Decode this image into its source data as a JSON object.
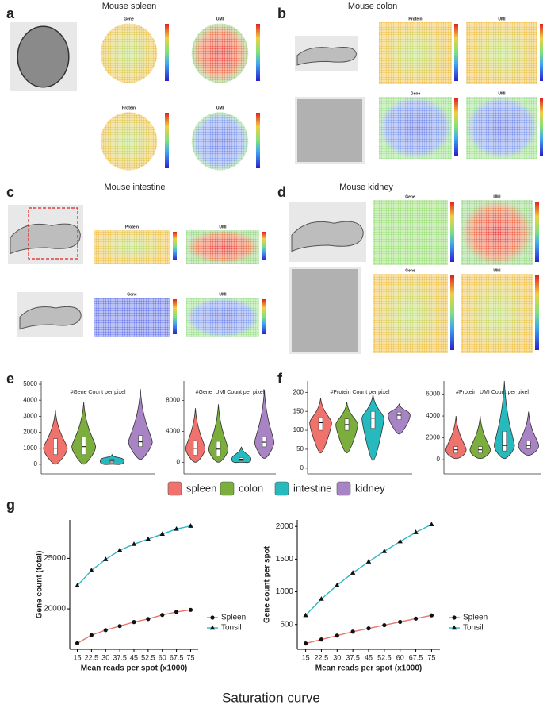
{
  "panels": [
    {
      "label": "a",
      "title": "Mouse spleen",
      "maps": [
        "Gene",
        "UMI",
        "Protein",
        "UMI"
      ]
    },
    {
      "label": "b",
      "title": "Mouse colon",
      "maps": [
        "Protein",
        "UMI",
        "Gene",
        "UMI"
      ]
    },
    {
      "label": "c",
      "title": "Mouse intestine",
      "maps": [
        "Protein",
        "UMI",
        "Gene",
        "UMI"
      ]
    },
    {
      "label": "d",
      "title": "Mouse kidney",
      "maps": [
        "Gene",
        "UMI",
        "Gene",
        "UMI"
      ]
    },
    {
      "label": "e"
    },
    {
      "label": "f"
    },
    {
      "label": "g"
    }
  ],
  "legend": [
    {
      "name": "spleen",
      "color": "#F0726C"
    },
    {
      "name": "colon",
      "color": "#7BAE3C"
    },
    {
      "name": "intestine",
      "color": "#26B9BE"
    },
    {
      "name": "kidney",
      "color": "#A884C4"
    }
  ],
  "chart_data": [
    {
      "type": "violin",
      "title": "#Gene Count per pixel",
      "ylim": [
        -600,
        5200
      ],
      "yticks": [
        0,
        1000,
        2000,
        3000,
        4000,
        5000
      ],
      "median": [
        1000,
        1100,
        200,
        1400
      ],
      "q1": [
        600,
        600,
        100,
        1100
      ],
      "q3": [
        1600,
        1700,
        300,
        1800
      ],
      "min": [
        0,
        0,
        0,
        300
      ],
      "max": [
        3400,
        3900,
        600,
        4700
      ]
    },
    {
      "type": "violin",
      "title": "#Gene_UMI Count per pixel",
      "ylim": [
        -1500,
        10500
      ],
      "yticks": [
        0,
        4000,
        8000
      ],
      "median": [
        1800,
        1700,
        400,
        2600
      ],
      "q1": [
        900,
        800,
        200,
        2000
      ],
      "q3": [
        2800,
        2700,
        600,
        3300
      ],
      "min": [
        0,
        0,
        0,
        500
      ],
      "max": [
        7000,
        7500,
        2000,
        9400
      ]
    },
    {
      "type": "violin",
      "title": "#Protein Count per pixel",
      "ylim": [
        -15,
        230
      ],
      "yticks": [
        0,
        50,
        100,
        150,
        200
      ],
      "median": [
        120,
        115,
        132,
        140
      ],
      "q1": [
        100,
        100,
        105,
        128
      ],
      "q3": [
        135,
        130,
        150,
        148
      ],
      "min": [
        40,
        40,
        20,
        90
      ],
      "max": [
        185,
        175,
        195,
        170
      ]
    },
    {
      "type": "violin",
      "title": "#Protein_UMI Count per pixel",
      "ylim": [
        -1300,
        7200
      ],
      "yticks": [
        0,
        2000,
        4000,
        6000
      ],
      "median": [
        900,
        900,
        1300,
        1300
      ],
      "q1": [
        600,
        600,
        800,
        1000
      ],
      "q3": [
        1200,
        1200,
        2600,
        1700
      ],
      "min": [
        100,
        100,
        100,
        400
      ],
      "max": [
        4000,
        4000,
        7200,
        4400
      ]
    },
    {
      "type": "line",
      "ylabel": "Gene count (total)",
      "xlabel": "Mean reads per spot (x1000)",
      "x": [
        15,
        22.5,
        30,
        37.5,
        45,
        52.5,
        60,
        67.5,
        75
      ],
      "xlim": [
        11,
        79
      ],
      "xticks": [
        15,
        22.5,
        30,
        37.5,
        45,
        52.5,
        60,
        67.5,
        75
      ],
      "ylim": [
        16000,
        28800
      ],
      "yticks": [
        20000,
        25000
      ],
      "series": [
        {
          "name": "Spleen",
          "color": "#E8756B",
          "marker": "circle",
          "values": [
            16600,
            17400,
            17900,
            18300,
            18700,
            19000,
            19400,
            19700,
            19900
          ]
        },
        {
          "name": "Tonsil",
          "color": "#2DB8C5",
          "marker": "triangle",
          "values": [
            22300,
            23800,
            24900,
            25800,
            26400,
            26900,
            27400,
            27900,
            28200
          ]
        }
      ]
    },
    {
      "type": "line",
      "ylabel": "Gene count per spot",
      "xlabel": "Mean reads per spot (x1000)",
      "x": [
        15,
        22.5,
        30,
        37.5,
        45,
        52.5,
        60,
        67.5,
        75
      ],
      "xlim": [
        11,
        79
      ],
      "xticks": [
        15,
        22.5,
        30,
        37.5,
        45,
        52.5,
        60,
        67.5,
        75
      ],
      "ylim": [
        120,
        2100
      ],
      "yticks": [
        500,
        1000,
        1500,
        2000
      ],
      "series": [
        {
          "name": "Spleen",
          "color": "#E8756B",
          "marker": "circle",
          "values": [
            210,
            270,
            330,
            390,
            440,
            490,
            540,
            590,
            640
          ]
        },
        {
          "name": "Tonsil",
          "color": "#2DB8C5",
          "marker": "triangle",
          "values": [
            640,
            890,
            1100,
            1290,
            1460,
            1620,
            1770,
            1910,
            2030
          ]
        }
      ]
    }
  ],
  "caption": "Saturation curve"
}
